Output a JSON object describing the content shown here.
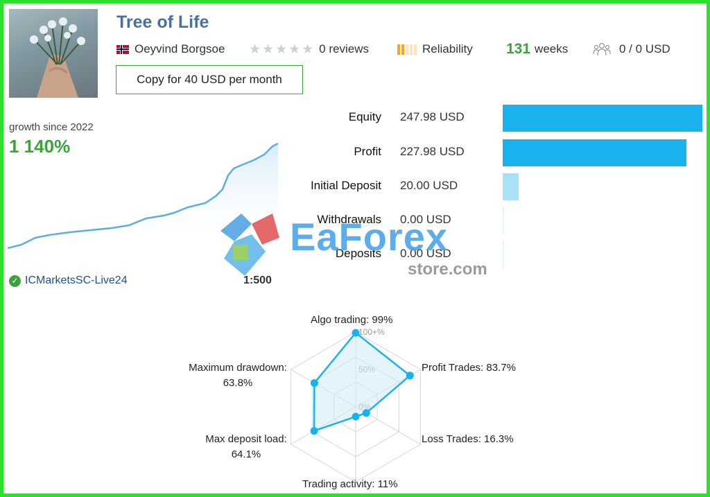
{
  "signal": {
    "title": "Tree of Life",
    "author": "Oeyvind Borgsoe",
    "reviews": "0 reviews",
    "reliability_label": "Reliability",
    "weeks_number": "131",
    "weeks_label": "weeks",
    "subscribers": "0 / 0 USD",
    "copy_button": "Copy for 40 USD per month"
  },
  "growth": {
    "label": "growth since 2022",
    "value": "1 140%"
  },
  "account": {
    "broker": "ICMarketsSC-Live24",
    "leverage": "1:500"
  },
  "stats": [
    {
      "label": "Equity",
      "value": "247.98 USD",
      "fraction": 1.0
    },
    {
      "label": "Profit",
      "value": "227.98 USD",
      "fraction": 0.919
    },
    {
      "label": "Initial Deposit",
      "value": "20.00 USD",
      "fraction": 0.081
    },
    {
      "label": "Withdrawals",
      "value": "0.00 USD",
      "fraction": 0.0
    },
    {
      "label": "Deposits",
      "value": "0.00 USD",
      "fraction": 0.0
    }
  ],
  "watermark": {
    "brand": "EaForex",
    "domain": "store.com"
  },
  "radar": {
    "ring_labels": [
      "100+%",
      "50%",
      "0%"
    ],
    "axes": [
      {
        "label": "Algo trading: 99%",
        "value": 0.99
      },
      {
        "label": "Profit Trades: 83.7%",
        "value": 0.837
      },
      {
        "label": "Loss Trades: 16.3%",
        "value": 0.163
      },
      {
        "label": "Trading activity: 11%",
        "value": 0.11
      },
      {
        "label": "Max deposit load:",
        "label2": "64.1%",
        "value": 0.641
      },
      {
        "label": "Maximum drawdown:",
        "label2": "63.8%",
        "value": 0.638
      }
    ]
  },
  "colors": {
    "accent_green": "#3aa43a",
    "bar_blue": "#1ab2ee",
    "bar_light": "#a9e2f7",
    "title_blue": "#4a6fa5",
    "line_blue": "#5aaee0"
  },
  "icons": [
    "flag-norway-icon",
    "star-icon",
    "reliability-bars-icon",
    "subscribers-icon",
    "verified-check-icon"
  ]
}
